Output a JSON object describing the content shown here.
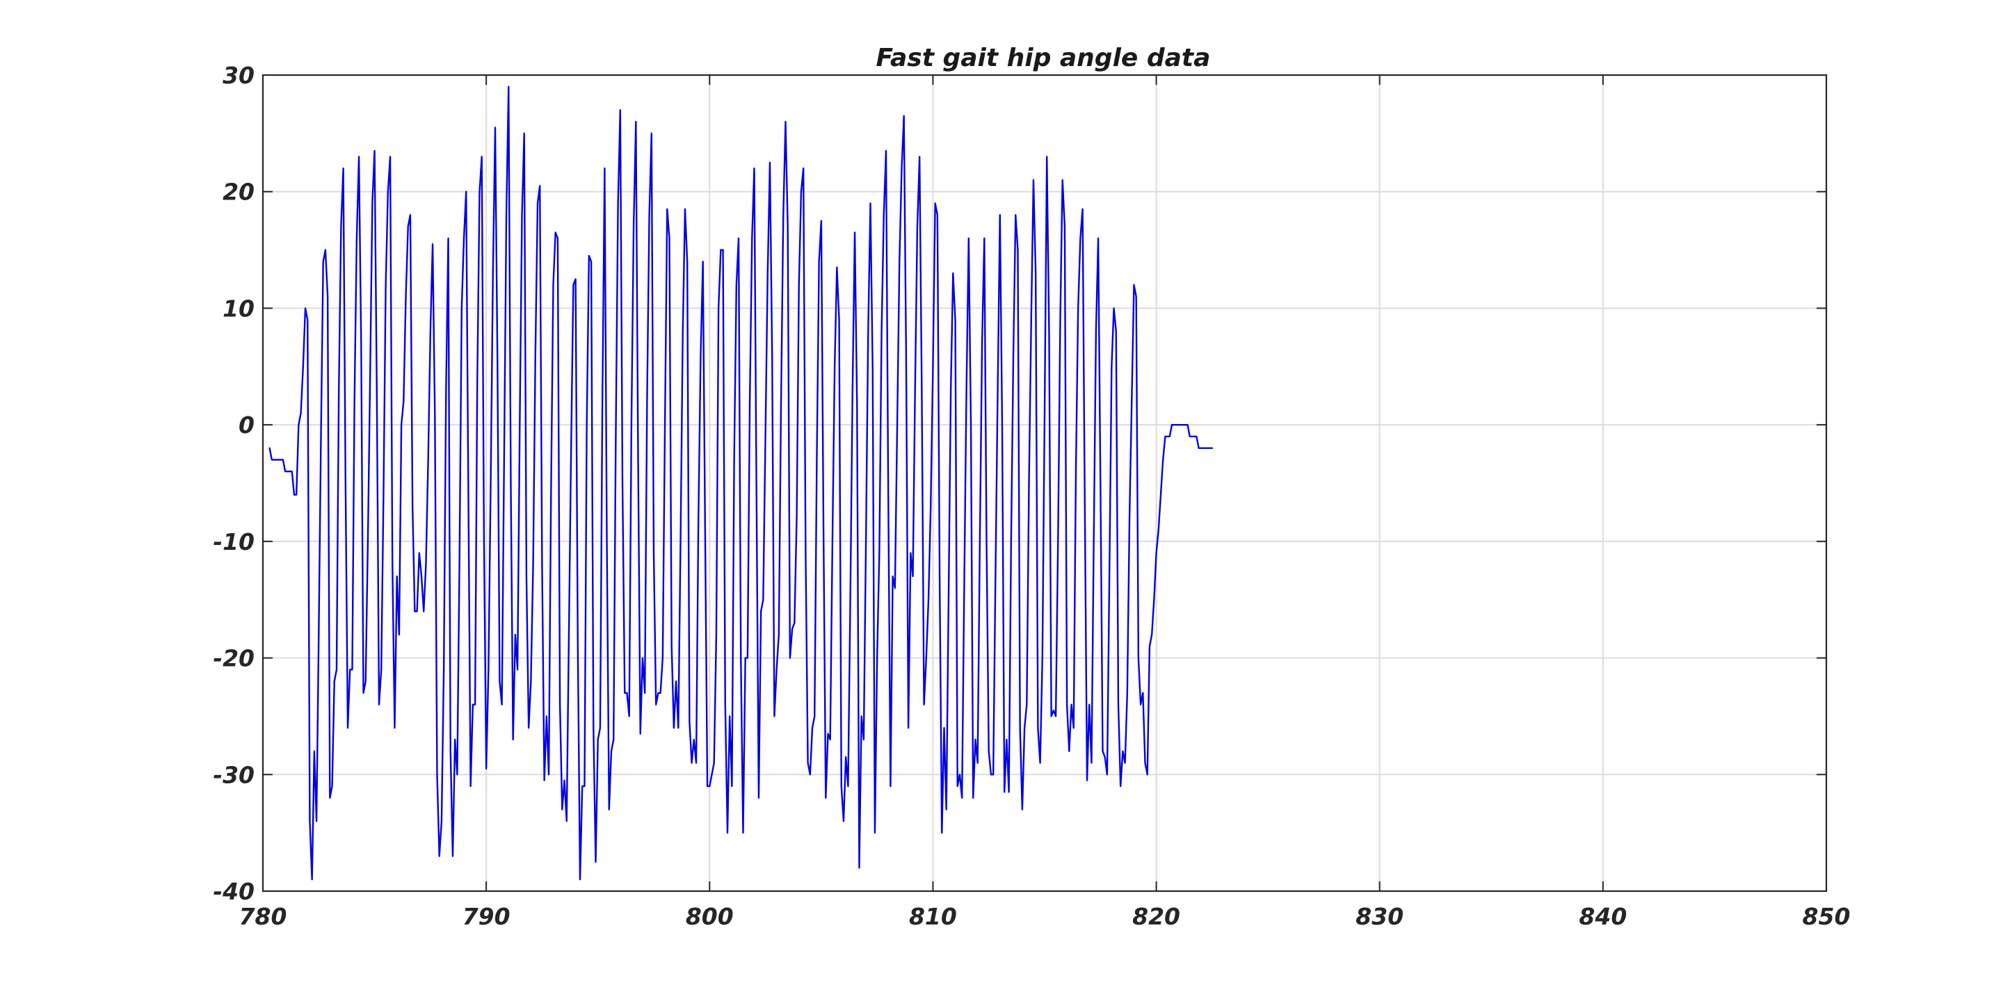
{
  "chart_data": {
    "type": "line",
    "title": "Fast gait hip angle data",
    "xlabel": "",
    "ylabel": "",
    "xlim": [
      780,
      850
    ],
    "ylim": [
      -40,
      30
    ],
    "xticks": [
      "780",
      "790",
      "800",
      "810",
      "820",
      "830",
      "840",
      "850"
    ],
    "yticks": [
      "30",
      "20",
      "10",
      "0",
      "-10",
      "-20",
      "-30",
      "-40"
    ],
    "grid": true,
    "colors": {
      "series": "#0000e6",
      "axes": "#262626",
      "grid": "#dcdcdc"
    },
    "series": [
      {
        "name": "",
        "start_x": 780.3,
        "step": 0.1,
        "values": [
          -2,
          -3,
          -3,
          -3,
          -3,
          -3,
          -3,
          -4,
          -4,
          -4,
          -4,
          -6,
          -6,
          0,
          1,
          5,
          10,
          9,
          -34,
          -39,
          -28,
          -34,
          -18,
          -1,
          14,
          15,
          11,
          -32,
          -31,
          -22,
          -21,
          3,
          17,
          22,
          -5,
          -26,
          -21,
          -21,
          2,
          16,
          23,
          7,
          -23,
          -22,
          -10,
          4,
          19,
          23.5,
          3,
          -24,
          -21,
          -6,
          12,
          20,
          23,
          -12,
          -26,
          -13,
          -18,
          0,
          2,
          11,
          17,
          18,
          -7,
          -16,
          -16,
          -11,
          -13,
          -16,
          -12,
          -3,
          8,
          15.5,
          1,
          -30,
          -37,
          -34,
          -21,
          3,
          16,
          -28,
          -37,
          -27,
          -30,
          -12,
          10,
          16,
          20,
          -6,
          -31,
          -24,
          -24,
          4,
          20,
          23,
          -10,
          -29.5,
          -21,
          -5,
          13,
          25.5,
          6,
          -22,
          -24,
          -3,
          18,
          29,
          -5,
          -27,
          -18,
          -21,
          0,
          18,
          25,
          -13,
          -26,
          -22,
          -12,
          6,
          19,
          20.5,
          -12,
          -30.5,
          -25,
          -30,
          -6,
          12,
          16.5,
          16,
          -24,
          -33,
          -30.5,
          -34,
          -18,
          -2,
          12,
          12.5,
          -19,
          -39,
          -31,
          -31,
          0,
          14.5,
          14,
          -26,
          -37.5,
          -27,
          -26,
          2,
          22,
          -10,
          -33,
          -28,
          -27,
          -1,
          19,
          27,
          -5,
          -23,
          -23,
          -25,
          0,
          17,
          26,
          -3,
          -26.5,
          -20,
          -23,
          2,
          18,
          25,
          -11,
          -24,
          -23,
          -23,
          -20,
          0,
          18.5,
          16,
          -19,
          -26,
          -22,
          -26,
          -10,
          8,
          18.5,
          14,
          -25.5,
          -29,
          -27,
          -29,
          -8,
          6,
          14,
          -9,
          -31,
          -31,
          -30,
          -29,
          -18,
          10,
          15,
          15,
          -24,
          -35,
          -25,
          -31,
          -3,
          12,
          16,
          -20,
          -35,
          -20,
          -20,
          2,
          16,
          22,
          -6,
          -32,
          -16,
          -15,
          -1,
          13,
          22.5,
          6,
          -25,
          -21,
          -18,
          2,
          18,
          26,
          17,
          -20,
          -17.5,
          -17,
          -8,
          12,
          20,
          22,
          -11,
          -29,
          -30,
          -26,
          -25,
          -3,
          14,
          17.5,
          -9,
          -32,
          -26.5,
          -27,
          -10,
          5,
          13.5,
          9,
          -31,
          -34,
          -28.5,
          -31,
          -15,
          3,
          16.5,
          2,
          -38,
          -25,
          -27,
          -10,
          8,
          19,
          5,
          -35,
          -20,
          -11,
          8,
          18,
          23.5,
          -6,
          -31,
          -13,
          -14,
          0,
          14,
          22,
          26.5,
          6,
          -26,
          -11,
          -13,
          3,
          17,
          23,
          3,
          -24,
          -20,
          -15,
          -7,
          5,
          19,
          18,
          -13,
          -35,
          -26,
          -33,
          -15,
          3,
          13,
          9,
          -31,
          -30,
          -32,
          -14,
          3,
          16,
          0,
          -32,
          -27,
          -29,
          -10,
          7,
          16,
          -10,
          -28,
          -30,
          -30,
          -13,
          3,
          18,
          0,
          -31.5,
          -27,
          -31.5,
          -10,
          6,
          18,
          15,
          -26,
          -33,
          -26,
          -24,
          -5,
          9,
          21,
          13,
          -26,
          -29,
          -20,
          1,
          23,
          8,
          -25,
          -24.5,
          -25,
          -10,
          9,
          21,
          17,
          -24,
          -28,
          -24,
          -26,
          -4,
          10,
          16,
          18.5,
          -7,
          -30.5,
          -24,
          -29,
          -10,
          8,
          16,
          -5,
          -28,
          -28.5,
          -30,
          -13,
          5,
          10,
          8,
          -24,
          -31,
          -28,
          -29,
          -23,
          -8,
          2,
          12,
          11,
          -20,
          -24,
          -23,
          -29,
          -30,
          -19,
          -18,
          -15,
          -11,
          -9,
          -6,
          -3,
          -1,
          -1,
          -1,
          0,
          0,
          0,
          0,
          0,
          0,
          0,
          0,
          -1,
          -1,
          -1,
          -1,
          -2,
          -2,
          -2,
          -2,
          -2,
          -2,
          -2
        ]
      }
    ]
  }
}
